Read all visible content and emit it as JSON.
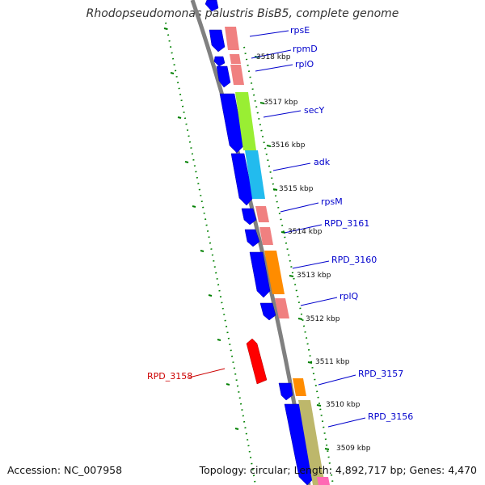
{
  "title": "Rhodopseudomonas palustris BisB5, complete genome",
  "footer": {
    "accession": "Accession: NC_007958",
    "topology": "Topology: circular; Length: 4,892,717 bp; Genes: 4,470"
  },
  "colors": {
    "backbone": "#808080",
    "cds": "#0000ff",
    "tick": "#008000",
    "label_forward": "#0000cc",
    "label_reverse": "#cc0000",
    "tick_label": "#111111"
  },
  "kbp_labels": [
    "3518 kbp",
    "3517 kbp",
    "3516 kbp",
    "3515 kbp",
    "3514 kbp",
    "3513 kbp",
    "3512 kbp",
    "3511 kbp",
    "3510 kbp",
    "3509 kbp"
  ],
  "genes": [
    {
      "name": "rpsE",
      "strand": "forward",
      "color": "#f08080"
    },
    {
      "name": "rpmD",
      "strand": "forward",
      "color": "#f08080"
    },
    {
      "name": "rplO",
      "strand": "forward",
      "color": "#f08080"
    },
    {
      "name": "secY",
      "strand": "forward",
      "color": "#99ee33"
    },
    {
      "name": "adk",
      "strand": "forward",
      "color": "#22bbee"
    },
    {
      "name": "rpsM",
      "strand": "forward",
      "color": "#f08080"
    },
    {
      "name": "RPD_3161",
      "strand": "forward",
      "color": "#f08080"
    },
    {
      "name": "RPD_3160",
      "strand": "forward",
      "color": "#ff8c00"
    },
    {
      "name": "rplQ",
      "strand": "forward",
      "color": "#f08080"
    },
    {
      "name": "RPD_3158",
      "strand": "reverse",
      "color": "#ff0000"
    },
    {
      "name": "RPD_3157",
      "strand": "forward",
      "color": "#ff8c00"
    },
    {
      "name": "RPD_3156",
      "strand": "forward",
      "color": "#bdb76b"
    }
  ]
}
